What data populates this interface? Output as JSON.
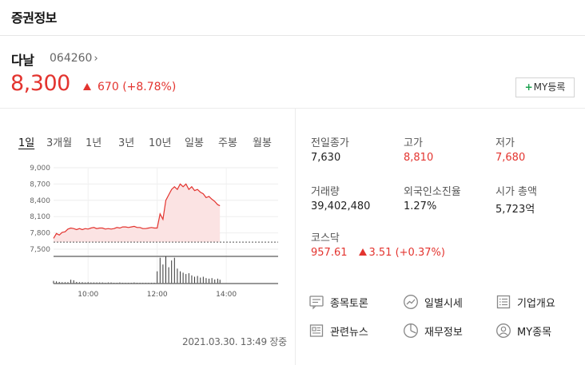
{
  "header": {
    "title": "증권정보"
  },
  "stock": {
    "name": "다날",
    "code": "064260",
    "code_chevron": "›",
    "price": "8,300",
    "change": "670",
    "change_pct": "(+8.78%)",
    "my_button": "MY등록",
    "my_button_plus": "+"
  },
  "tabs": [
    "1일",
    "3개월",
    "1년",
    "3년",
    "10년",
    "일봉",
    "주봉",
    "월봉"
  ],
  "chart_data": {
    "type": "area",
    "y_ticks": [
      "9,000",
      "8,700",
      "8,400",
      "8,100",
      "7,800",
      "7,500"
    ],
    "x_ticks": [
      "10:00",
      "12:00",
      "14:00"
    ],
    "ylim": [
      7500,
      9000
    ],
    "prev_close": 7630,
    "series": {
      "x": [
        "09:00",
        "09:05",
        "09:10",
        "09:15",
        "09:20",
        "09:25",
        "09:30",
        "09:35",
        "09:40",
        "09:45",
        "09:50",
        "09:55",
        "10:00",
        "10:05",
        "10:10",
        "10:15",
        "10:20",
        "10:25",
        "10:30",
        "10:35",
        "10:40",
        "10:45",
        "10:50",
        "10:55",
        "11:00",
        "11:05",
        "11:10",
        "11:15",
        "11:20",
        "11:25",
        "11:30",
        "11:35",
        "11:40",
        "11:45",
        "11:50",
        "11:55",
        "12:00",
        "12:05",
        "12:10",
        "12:15",
        "12:20",
        "12:25",
        "12:30",
        "12:35",
        "12:40",
        "12:45",
        "12:50",
        "12:55",
        "13:00",
        "13:05",
        "13:10",
        "13:15",
        "13:20",
        "13:25",
        "13:30",
        "13:35",
        "13:40",
        "13:45",
        "13:49"
      ],
      "y": [
        7700,
        7790,
        7760,
        7810,
        7820,
        7870,
        7890,
        7880,
        7860,
        7880,
        7860,
        7880,
        7870,
        7890,
        7900,
        7880,
        7890,
        7890,
        7870,
        7880,
        7870,
        7880,
        7900,
        7890,
        7910,
        7910,
        7900,
        7910,
        7920,
        7900,
        7900,
        7880,
        7880,
        7890,
        7900,
        7890,
        7890,
        8150,
        8050,
        8400,
        8500,
        8600,
        8650,
        8600,
        8700,
        8650,
        8700,
        8600,
        8650,
        8580,
        8600,
        8550,
        8520,
        8450,
        8470,
        8420,
        8380,
        8320,
        8300
      ]
    },
    "volume": [
      0.1,
      0.08,
      0.06,
      0.05,
      0.05,
      0.05,
      0.14,
      0.12,
      0.06,
      0.05,
      0.05,
      0.04,
      0.05,
      0.04,
      0.04,
      0.04,
      0.04,
      0.04,
      0.03,
      0.04,
      0.04,
      0.03,
      0.03,
      0.04,
      0.03,
      0.03,
      0.03,
      0.03,
      0.04,
      0.03,
      0.03,
      0.03,
      0.03,
      0.03,
      0.03,
      0.03,
      0.45,
      0.95,
      0.7,
      1.0,
      0.6,
      0.85,
      0.95,
      0.55,
      0.45,
      0.4,
      0.35,
      0.38,
      0.3,
      0.25,
      0.28,
      0.22,
      0.25,
      0.2,
      0.18,
      0.2,
      0.15,
      0.18,
      0.14
    ]
  },
  "timestamp": "2021.03.30. 13:49 장중",
  "info": [
    {
      "label": "전일종가",
      "value": "7,630",
      "red": false
    },
    {
      "label": "고가",
      "value": "8,810",
      "red": true
    },
    {
      "label": "저가",
      "value": "7,680",
      "red": true
    },
    {
      "label": "거래량",
      "value": "39,402,480",
      "red": false
    },
    {
      "label": "외국인소진율",
      "value": "1.27%",
      "red": false
    },
    {
      "label": "시가 총액",
      "value": "5,723억",
      "red": false
    }
  ],
  "kosdaq": {
    "label": "코스닥",
    "value": "957.61",
    "change": "3.51",
    "change_pct": "(+0.37%)"
  },
  "links": [
    {
      "label": "종목토론",
      "icon": "discussion-icon"
    },
    {
      "label": "일별시세",
      "icon": "trend-circle-icon"
    },
    {
      "label": "기업개요",
      "icon": "list-doc-icon"
    },
    {
      "label": "관련뉴스",
      "icon": "news-icon"
    },
    {
      "label": "재무정보",
      "icon": "pie-clock-icon"
    },
    {
      "label": "MY종목",
      "icon": "user-icon"
    }
  ],
  "colors": {
    "up": "#e3342f",
    "area_fill": "#fbe3e3",
    "my_plus": "#1aa14d"
  }
}
